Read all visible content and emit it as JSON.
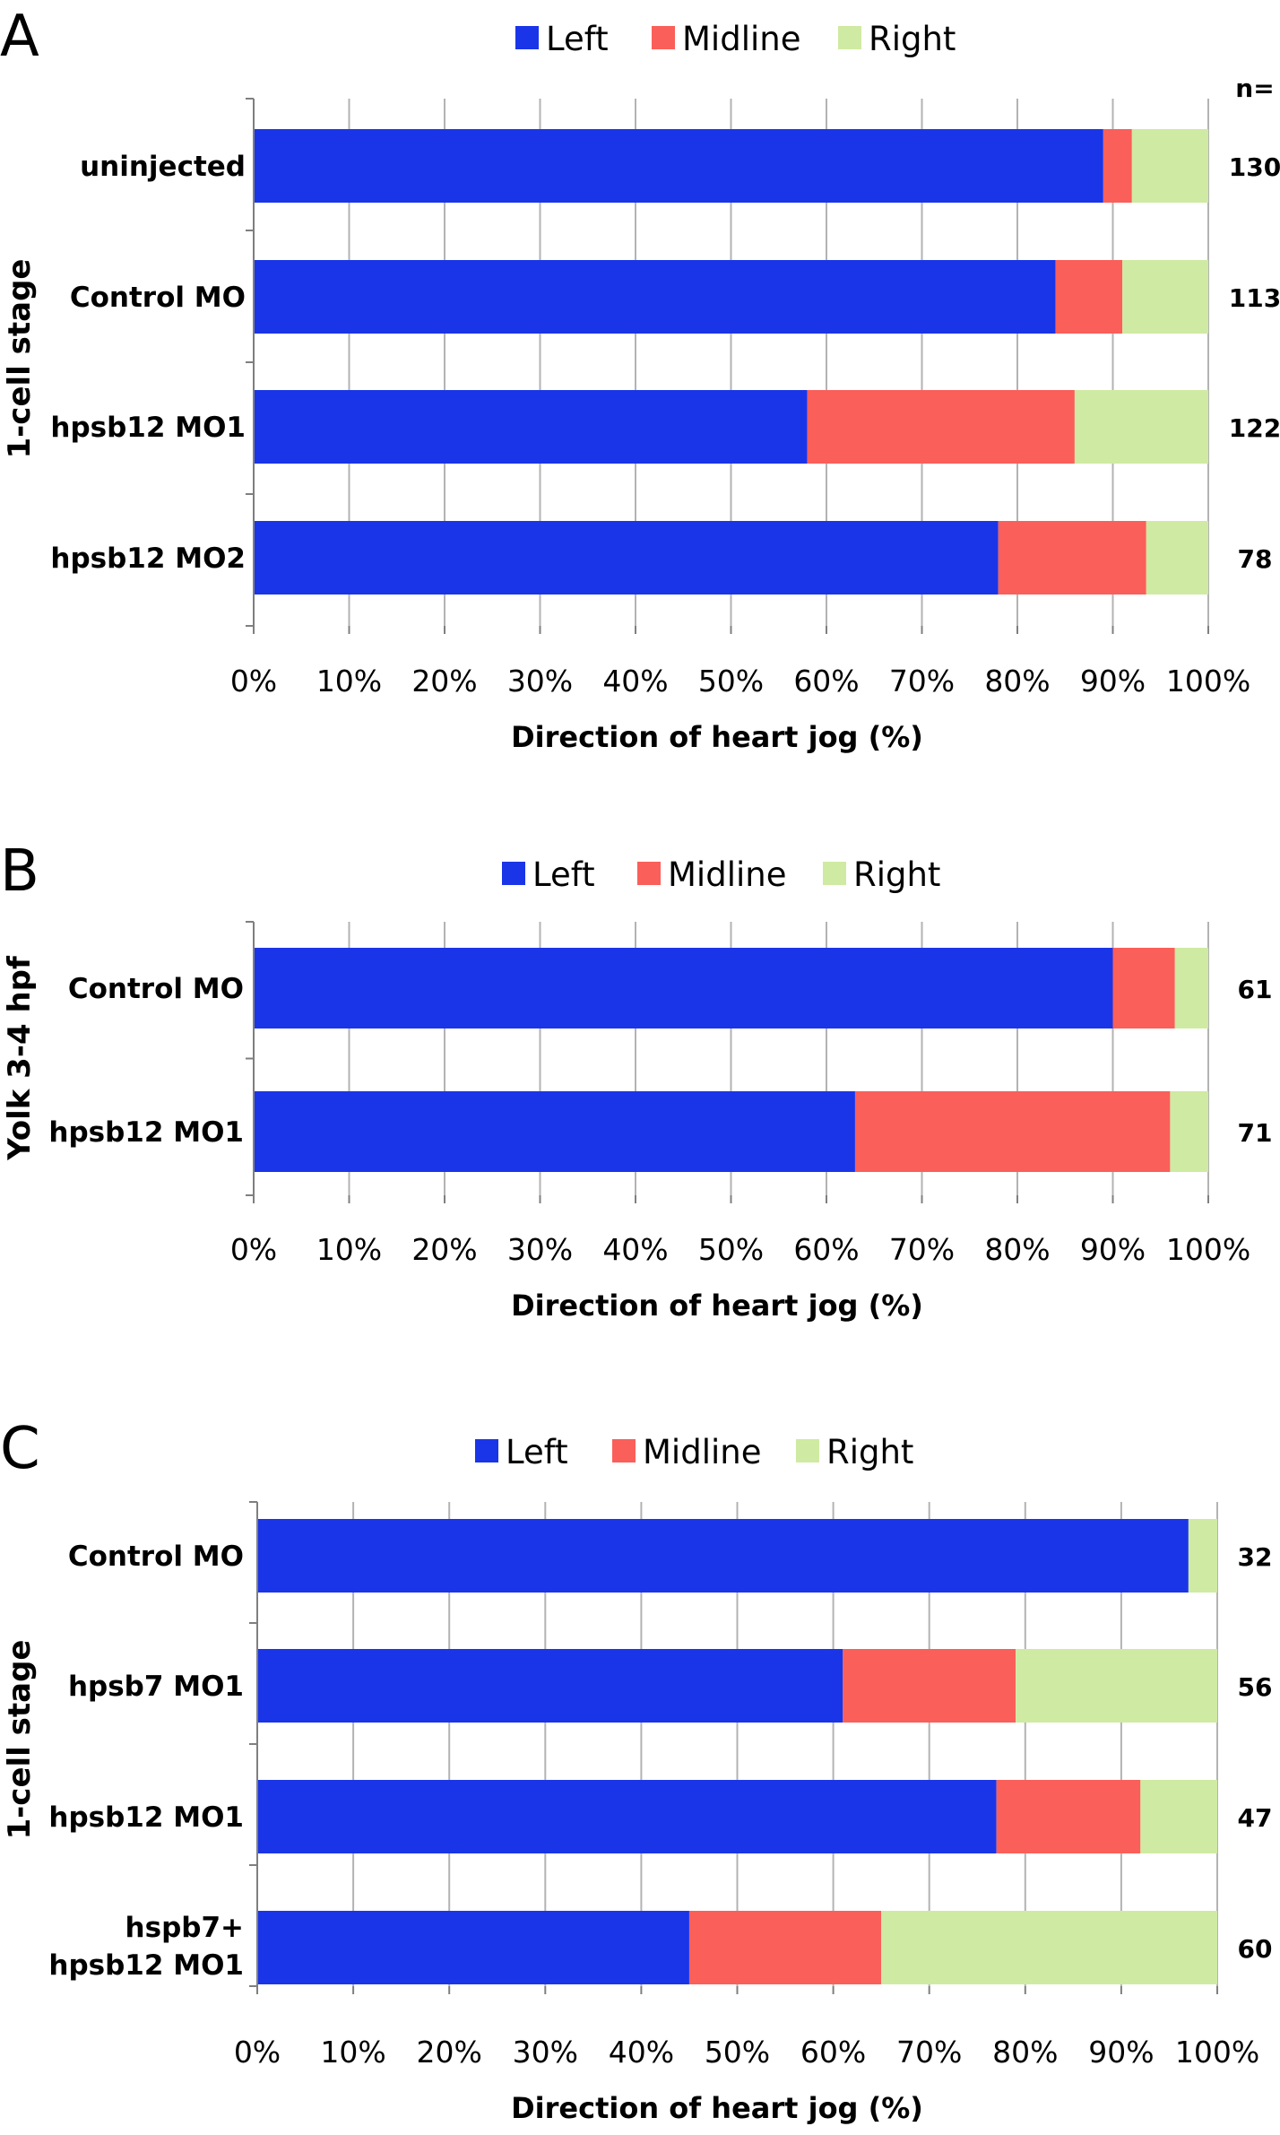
{
  "colors": {
    "left": "#1a35e8",
    "midline": "#fa5f5a",
    "right": "#cfeaa2",
    "grid": "#b3b3b3",
    "axis": "#7f7f7f"
  },
  "chart_data": [
    {
      "panel": "A",
      "type": "bar",
      "orientation": "horizontal",
      "stacked": true,
      "ylabel": "1-cell stage",
      "xlabel": "Direction of heart jog (%)",
      "n_header": "n=",
      "categories": [
        "uninjected",
        "Control MO",
        "hpsb12 MO1",
        "hpsb12 MO2"
      ],
      "n": [
        "130",
        "113",
        "122",
        "78"
      ],
      "series": [
        {
          "name": "Left",
          "values": [
            89,
            84,
            58,
            78
          ]
        },
        {
          "name": "Midline",
          "values": [
            3,
            7,
            28,
            15.5
          ]
        },
        {
          "name": "Right",
          "values": [
            8,
            9,
            14,
            6.5
          ]
        }
      ],
      "xlim": [
        0,
        100
      ],
      "xticks": [
        "0%",
        "10%",
        "20%",
        "30%",
        "40%",
        "50%",
        "60%",
        "70%",
        "80%",
        "90%",
        "100%"
      ],
      "grid": true,
      "legend": "top"
    },
    {
      "panel": "B",
      "type": "bar",
      "orientation": "horizontal",
      "stacked": true,
      "ylabel": "Yolk 3-4 hpf",
      "xlabel": "Direction of heart jog (%)",
      "categories": [
        "Control MO",
        "hpsb12 MO1"
      ],
      "n": [
        "61",
        "71"
      ],
      "series": [
        {
          "name": "Left",
          "values": [
            90,
            63
          ]
        },
        {
          "name": "Midline",
          "values": [
            6.5,
            33
          ]
        },
        {
          "name": "Right",
          "values": [
            3.5,
            4
          ]
        }
      ],
      "xlim": [
        0,
        100
      ],
      "xticks": [
        "0%",
        "10%",
        "20%",
        "30%",
        "40%",
        "50%",
        "60%",
        "70%",
        "80%",
        "90%",
        "100%"
      ],
      "grid": true,
      "legend": "top"
    },
    {
      "panel": "C",
      "type": "bar",
      "orientation": "horizontal",
      "stacked": true,
      "ylabel": "1-cell stage",
      "xlabel": "Direction of heart jog (%)",
      "categories": [
        "Control MO",
        "hpsb7 MO1",
        "hpsb12 MO1",
        "hspb7+ hpsb12 MO1"
      ],
      "n": [
        "32",
        "56",
        "47",
        "60"
      ],
      "series": [
        {
          "name": "Left",
          "values": [
            97,
            61,
            77,
            45
          ]
        },
        {
          "name": "Midline",
          "values": [
            0,
            18,
            15,
            20
          ]
        },
        {
          "name": "Right",
          "values": [
            3,
            21,
            8,
            35
          ]
        }
      ],
      "xlim": [
        0,
        100
      ],
      "xticks": [
        "0%",
        "10%",
        "20%",
        "30%",
        "40%",
        "50%",
        "60%",
        "70%",
        "80%",
        "90%",
        "100%"
      ],
      "grid": true,
      "legend": "top"
    }
  ]
}
